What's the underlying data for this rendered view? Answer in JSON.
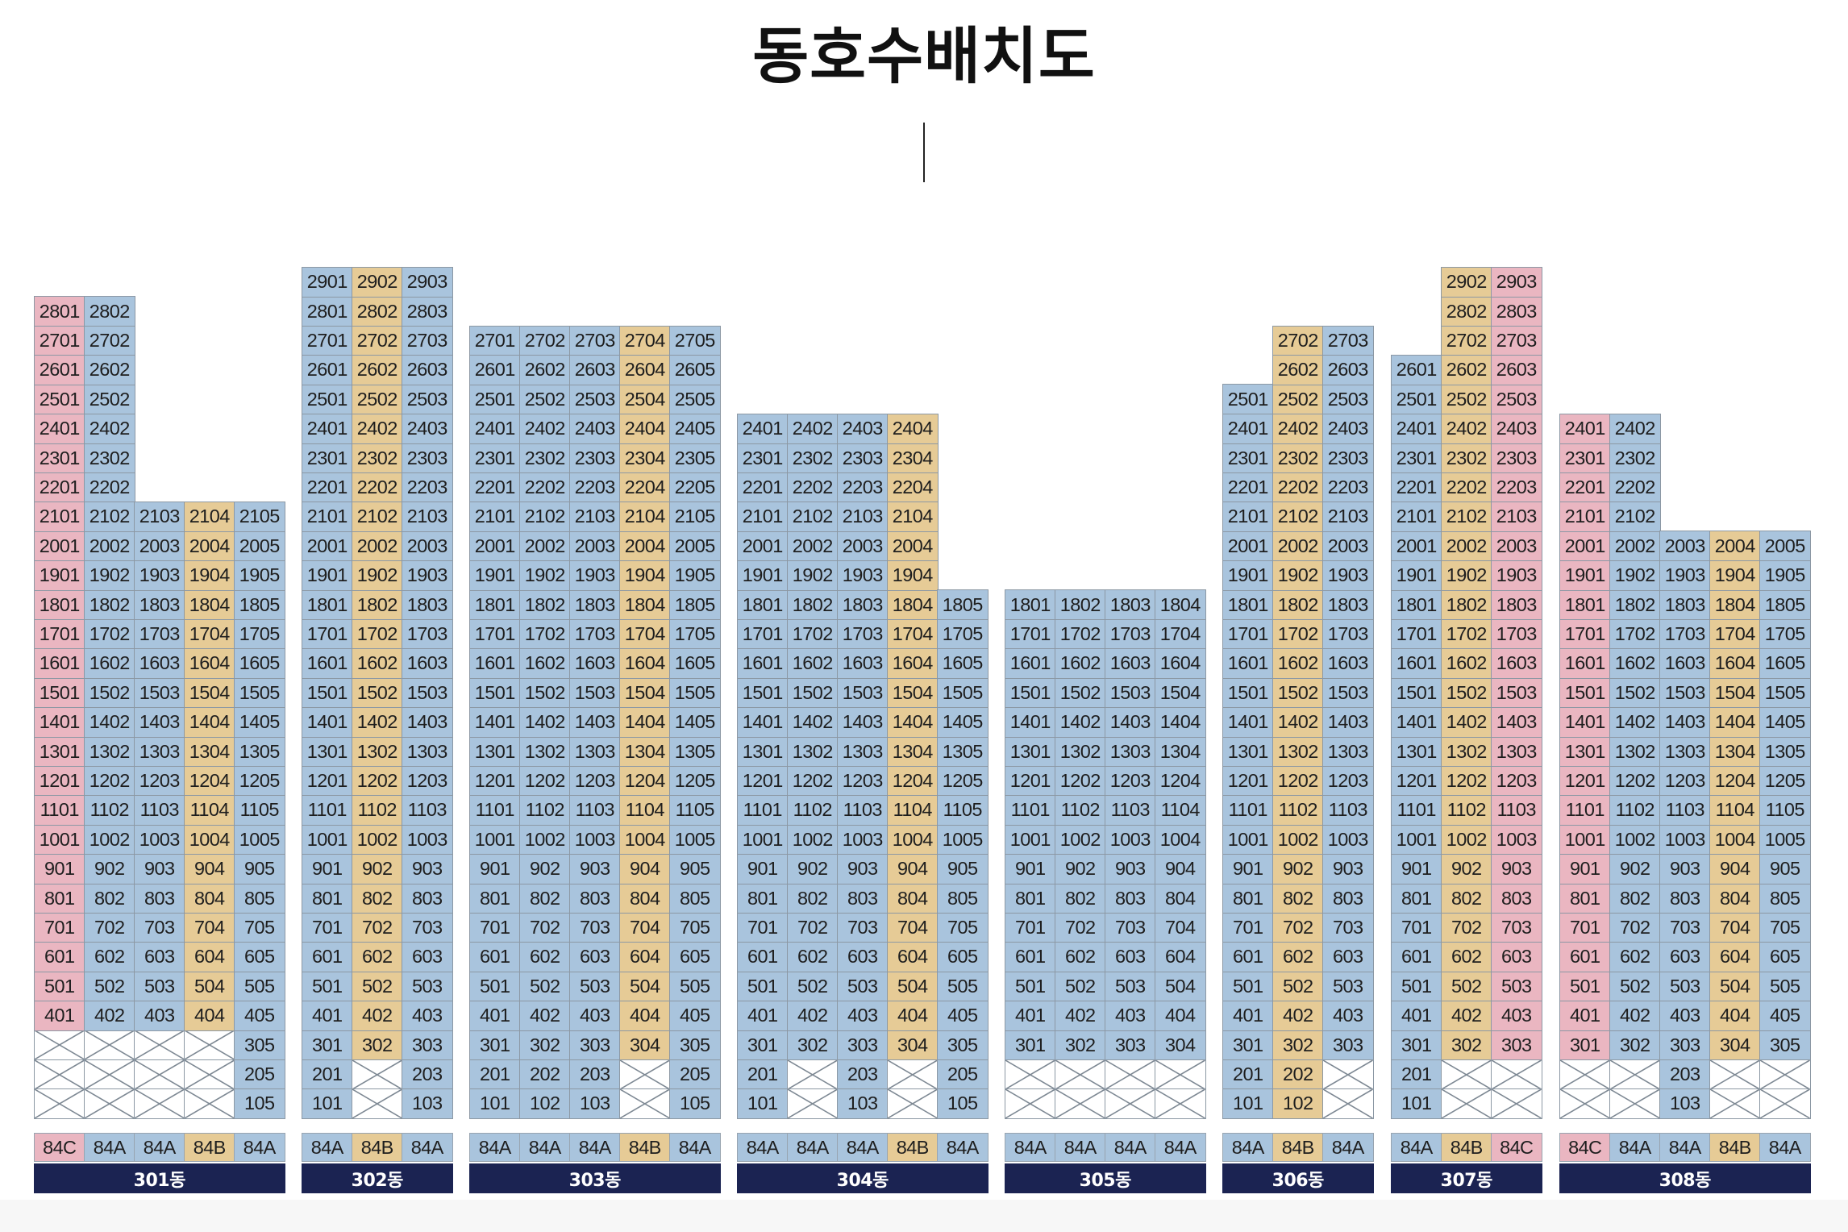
{
  "page_title": "동호수배치도",
  "colors": {
    "A": "#a9c4dd",
    "B": "#e6cb96",
    "C": "#eab6c1",
    "X": "#ffffff",
    "label_bar": "#1b2352"
  },
  "buildings": [
    {
      "name": "301동",
      "types": [
        "84C",
        "84A",
        "84A",
        "84B",
        "84A"
      ],
      "line_tops": [
        28,
        28,
        21,
        21,
        21
      ],
      "absent": [
        [
          3,
          1
        ],
        [
          3,
          2
        ],
        [
          3,
          3
        ],
        [
          3,
          4
        ],
        [
          2,
          1
        ],
        [
          2,
          2
        ],
        [
          2,
          3
        ],
        [
          2,
          4
        ],
        [
          1,
          1
        ],
        [
          1,
          2
        ],
        [
          1,
          3
        ],
        [
          1,
          4
        ]
      ],
      "bottom_floor": 1
    },
    {
      "name": "302동",
      "types": [
        "84A",
        "84B",
        "84A"
      ],
      "line_tops": [
        29,
        29,
        29
      ],
      "absent": [
        [
          2,
          2
        ],
        [
          1,
          2
        ]
      ],
      "bottom_floor": 1
    },
    {
      "name": "303동",
      "types": [
        "84A",
        "84A",
        "84A",
        "84B",
        "84A"
      ],
      "line_tops": [
        27,
        27,
        27,
        27,
        27
      ],
      "absent": [
        [
          2,
          4
        ],
        [
          1,
          4
        ]
      ],
      "bottom_floor": 1
    },
    {
      "name": "304동",
      "types": [
        "84A",
        "84A",
        "84A",
        "84B",
        "84A"
      ],
      "line_tops": [
        24,
        24,
        24,
        24,
        18
      ],
      "absent": [
        [
          2,
          2
        ],
        [
          2,
          4
        ],
        [
          1,
          2
        ],
        [
          1,
          4
        ]
      ],
      "bottom_floor": 1
    },
    {
      "name": "305동",
      "types": [
        "84A",
        "84A",
        "84A",
        "84A"
      ],
      "line_tops": [
        18,
        18,
        18,
        18
      ],
      "absent": [
        [
          2,
          1
        ],
        [
          2,
          2
        ],
        [
          2,
          3
        ],
        [
          2,
          4
        ],
        [
          1,
          1
        ],
        [
          1,
          2
        ],
        [
          1,
          3
        ],
        [
          1,
          4
        ]
      ],
      "bottom_floor": 1
    },
    {
      "name": "306동",
      "types": [
        "84A",
        "84B",
        "84A"
      ],
      "line_tops": [
        25,
        27,
        27
      ],
      "absent": [
        [
          2,
          3
        ],
        [
          1,
          3
        ]
      ],
      "bottom_floor": 1
    },
    {
      "name": "307동",
      "types": [
        "84A",
        "84B",
        "84C"
      ],
      "line_tops": [
        26,
        29,
        29
      ],
      "absent": [
        [
          2,
          2
        ],
        [
          2,
          3
        ],
        [
          1,
          2
        ],
        [
          1,
          3
        ]
      ],
      "bottom_floor": 1
    },
    {
      "name": "308동",
      "types": [
        "84C",
        "84A",
        "84A",
        "84B",
        "84A"
      ],
      "line_tops": [
        24,
        24,
        20,
        20,
        20
      ],
      "absent": [
        [
          2,
          1
        ],
        [
          2,
          2
        ],
        [
          2,
          4
        ],
        [
          2,
          5
        ],
        [
          1,
          1
        ],
        [
          1,
          2
        ],
        [
          1,
          4
        ],
        [
          1,
          5
        ]
      ],
      "bottom_floor": 1
    }
  ]
}
